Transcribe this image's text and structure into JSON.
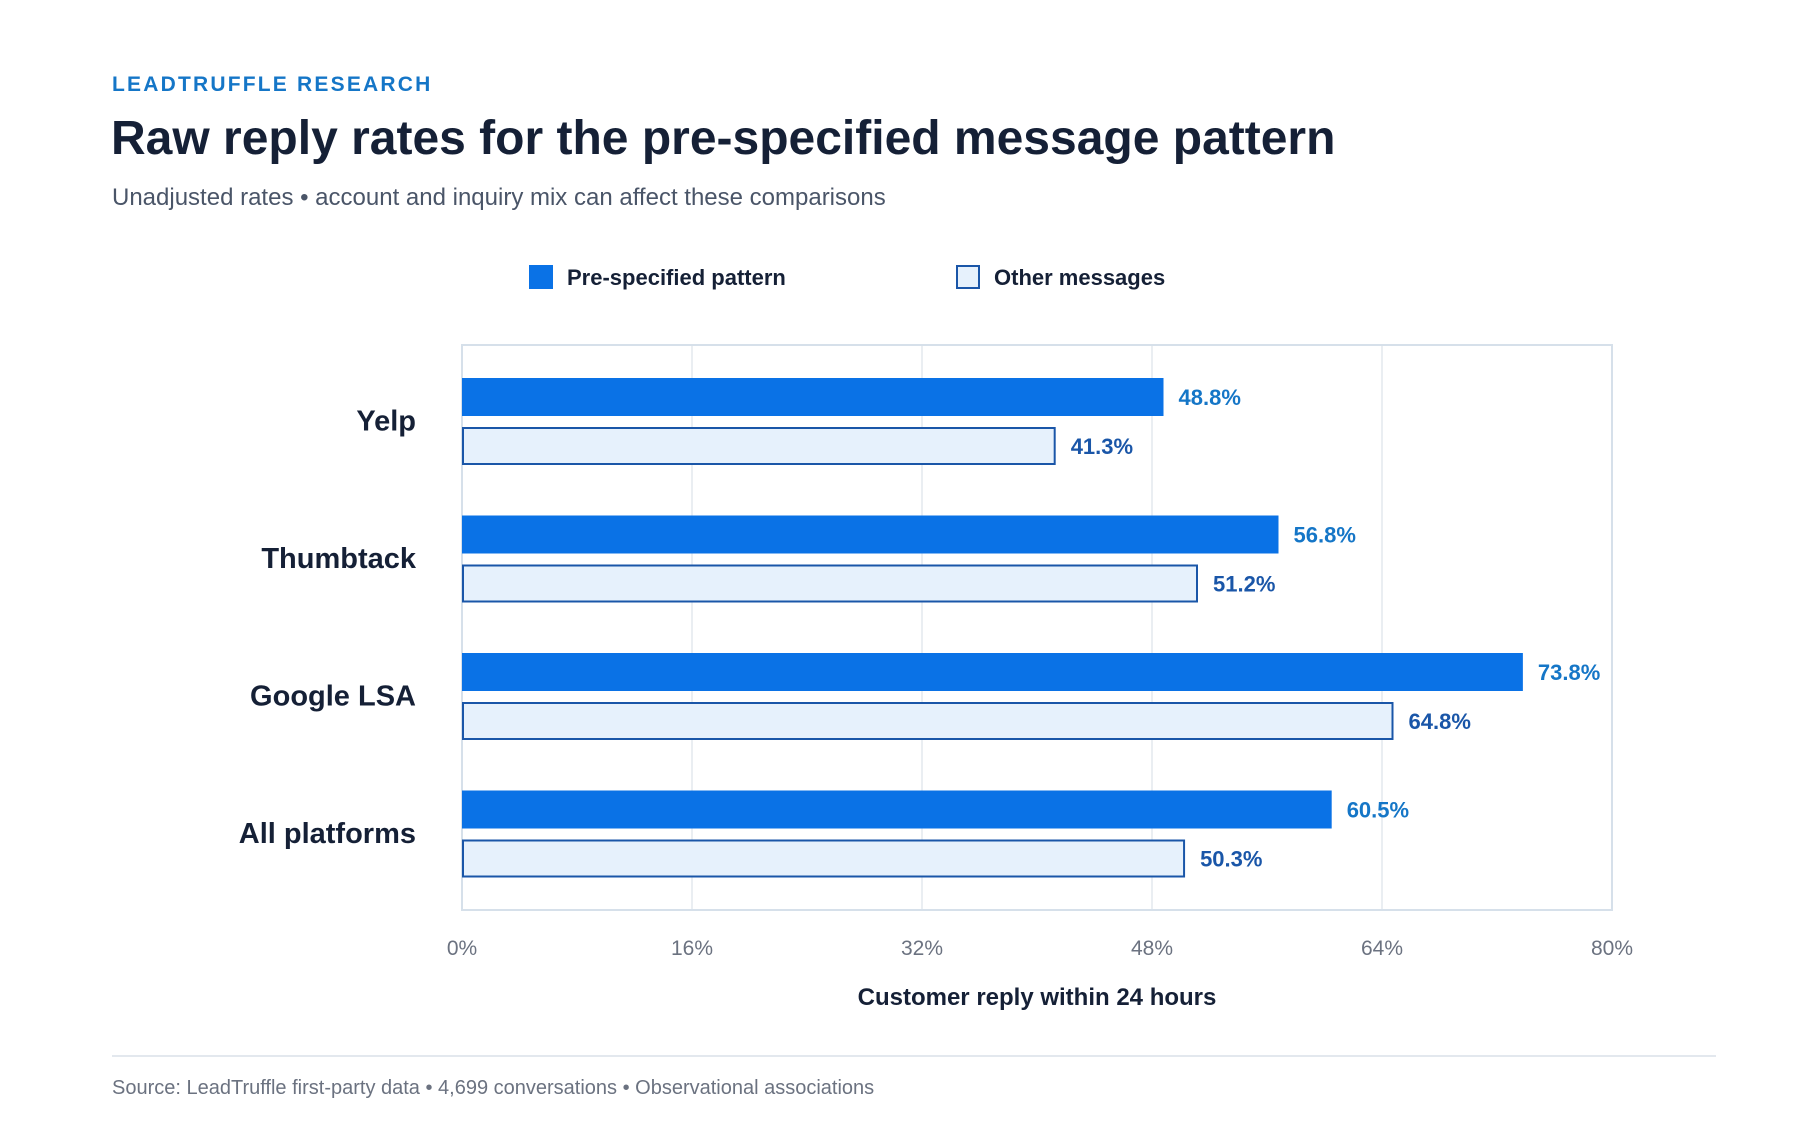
{
  "header": {
    "eyebrow": "LEADTRUFFLE RESEARCH",
    "title": "Raw reply rates for the pre-specified message pattern",
    "subtitle": "Unadjusted rates • account and inquiry mix can affect these comparisons"
  },
  "footer": {
    "source": "Source: LeadTruffle first-party data • 4,699 conversations • Observational associations"
  },
  "colors": {
    "primary": "#0a72e6",
    "secondary_fill": "#e6f1fc",
    "secondary_stroke": "#1a56a8",
    "primary_label": "#1576c7",
    "secondary_label": "#1a56a8",
    "grid": "#e3e8ee",
    "text_dark": "#152036",
    "tick": "#6b7280"
  },
  "chart_data": {
    "type": "bar",
    "orientation": "horizontal",
    "categories": [
      "Yelp",
      "Thumbtack",
      "Google LSA",
      "All platforms"
    ],
    "series": [
      {
        "name": "Pre-specified pattern",
        "values": [
          48.8,
          56.8,
          73.8,
          60.5
        ],
        "labels": [
          "48.8%",
          "56.8%",
          "73.8%",
          "60.5%"
        ]
      },
      {
        "name": "Other messages",
        "values": [
          41.3,
          51.2,
          64.8,
          50.3
        ],
        "labels": [
          "41.3%",
          "51.2%",
          "64.8%",
          "50.3%"
        ]
      }
    ],
    "xlabel": "Customer reply within 24 hours",
    "ylabel": "",
    "xlim": [
      0,
      80
    ],
    "ticks": [
      0,
      16,
      32,
      48,
      64,
      80
    ],
    "tick_labels": [
      "0%",
      "16%",
      "32%",
      "48%",
      "64%",
      "80%"
    ],
    "grid": true,
    "legend": "top-center"
  }
}
